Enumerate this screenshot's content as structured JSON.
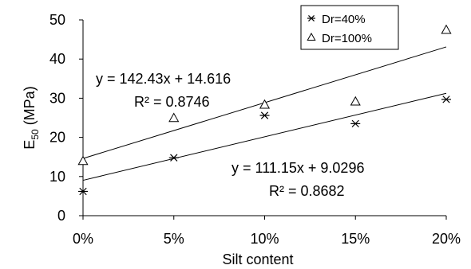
{
  "chart_data": {
    "type": "scatter",
    "xlabel": "Silt content",
    "ylabel_main": "E",
    "ylabel_sub": "50",
    "ylabel_unit": " (MPa)",
    "xlim": [
      0,
      0.2
    ],
    "ylim": [
      0,
      50
    ],
    "x_ticks": [
      0,
      0.05,
      0.1,
      0.15,
      0.2
    ],
    "x_tick_labels": [
      "0%",
      "5%",
      "10%",
      "15%",
      "20%"
    ],
    "y_ticks": [
      0,
      10,
      20,
      30,
      40,
      50
    ],
    "y_tick_labels": [
      "0",
      "10",
      "20",
      "30",
      "40",
      "50"
    ],
    "grid": false,
    "legend_position": "top-right",
    "series": [
      {
        "name": "Dr=40%",
        "marker": "asterisk",
        "x": [
          0,
          0.05,
          0.1,
          0.15,
          0.2
        ],
        "y": [
          6.2,
          14.8,
          25.6,
          23.5,
          29.7
        ],
        "trendline": {
          "slope": 111.15,
          "intercept": 9.0296
        },
        "equation": "y = 111.15x + 9.0296",
        "r2": "R² = 0.8682"
      },
      {
        "name": "Dr=100%",
        "marker": "triangle",
        "x": [
          0,
          0.05,
          0.1,
          0.15,
          0.2
        ],
        "y": [
          13.9,
          24.9,
          28.3,
          29.1,
          47.4
        ],
        "trendline": {
          "slope": 142.43,
          "intercept": 14.616
        },
        "equation": "y = 142.43x + 14.616",
        "r2": "R² = 0.8746"
      }
    ]
  }
}
